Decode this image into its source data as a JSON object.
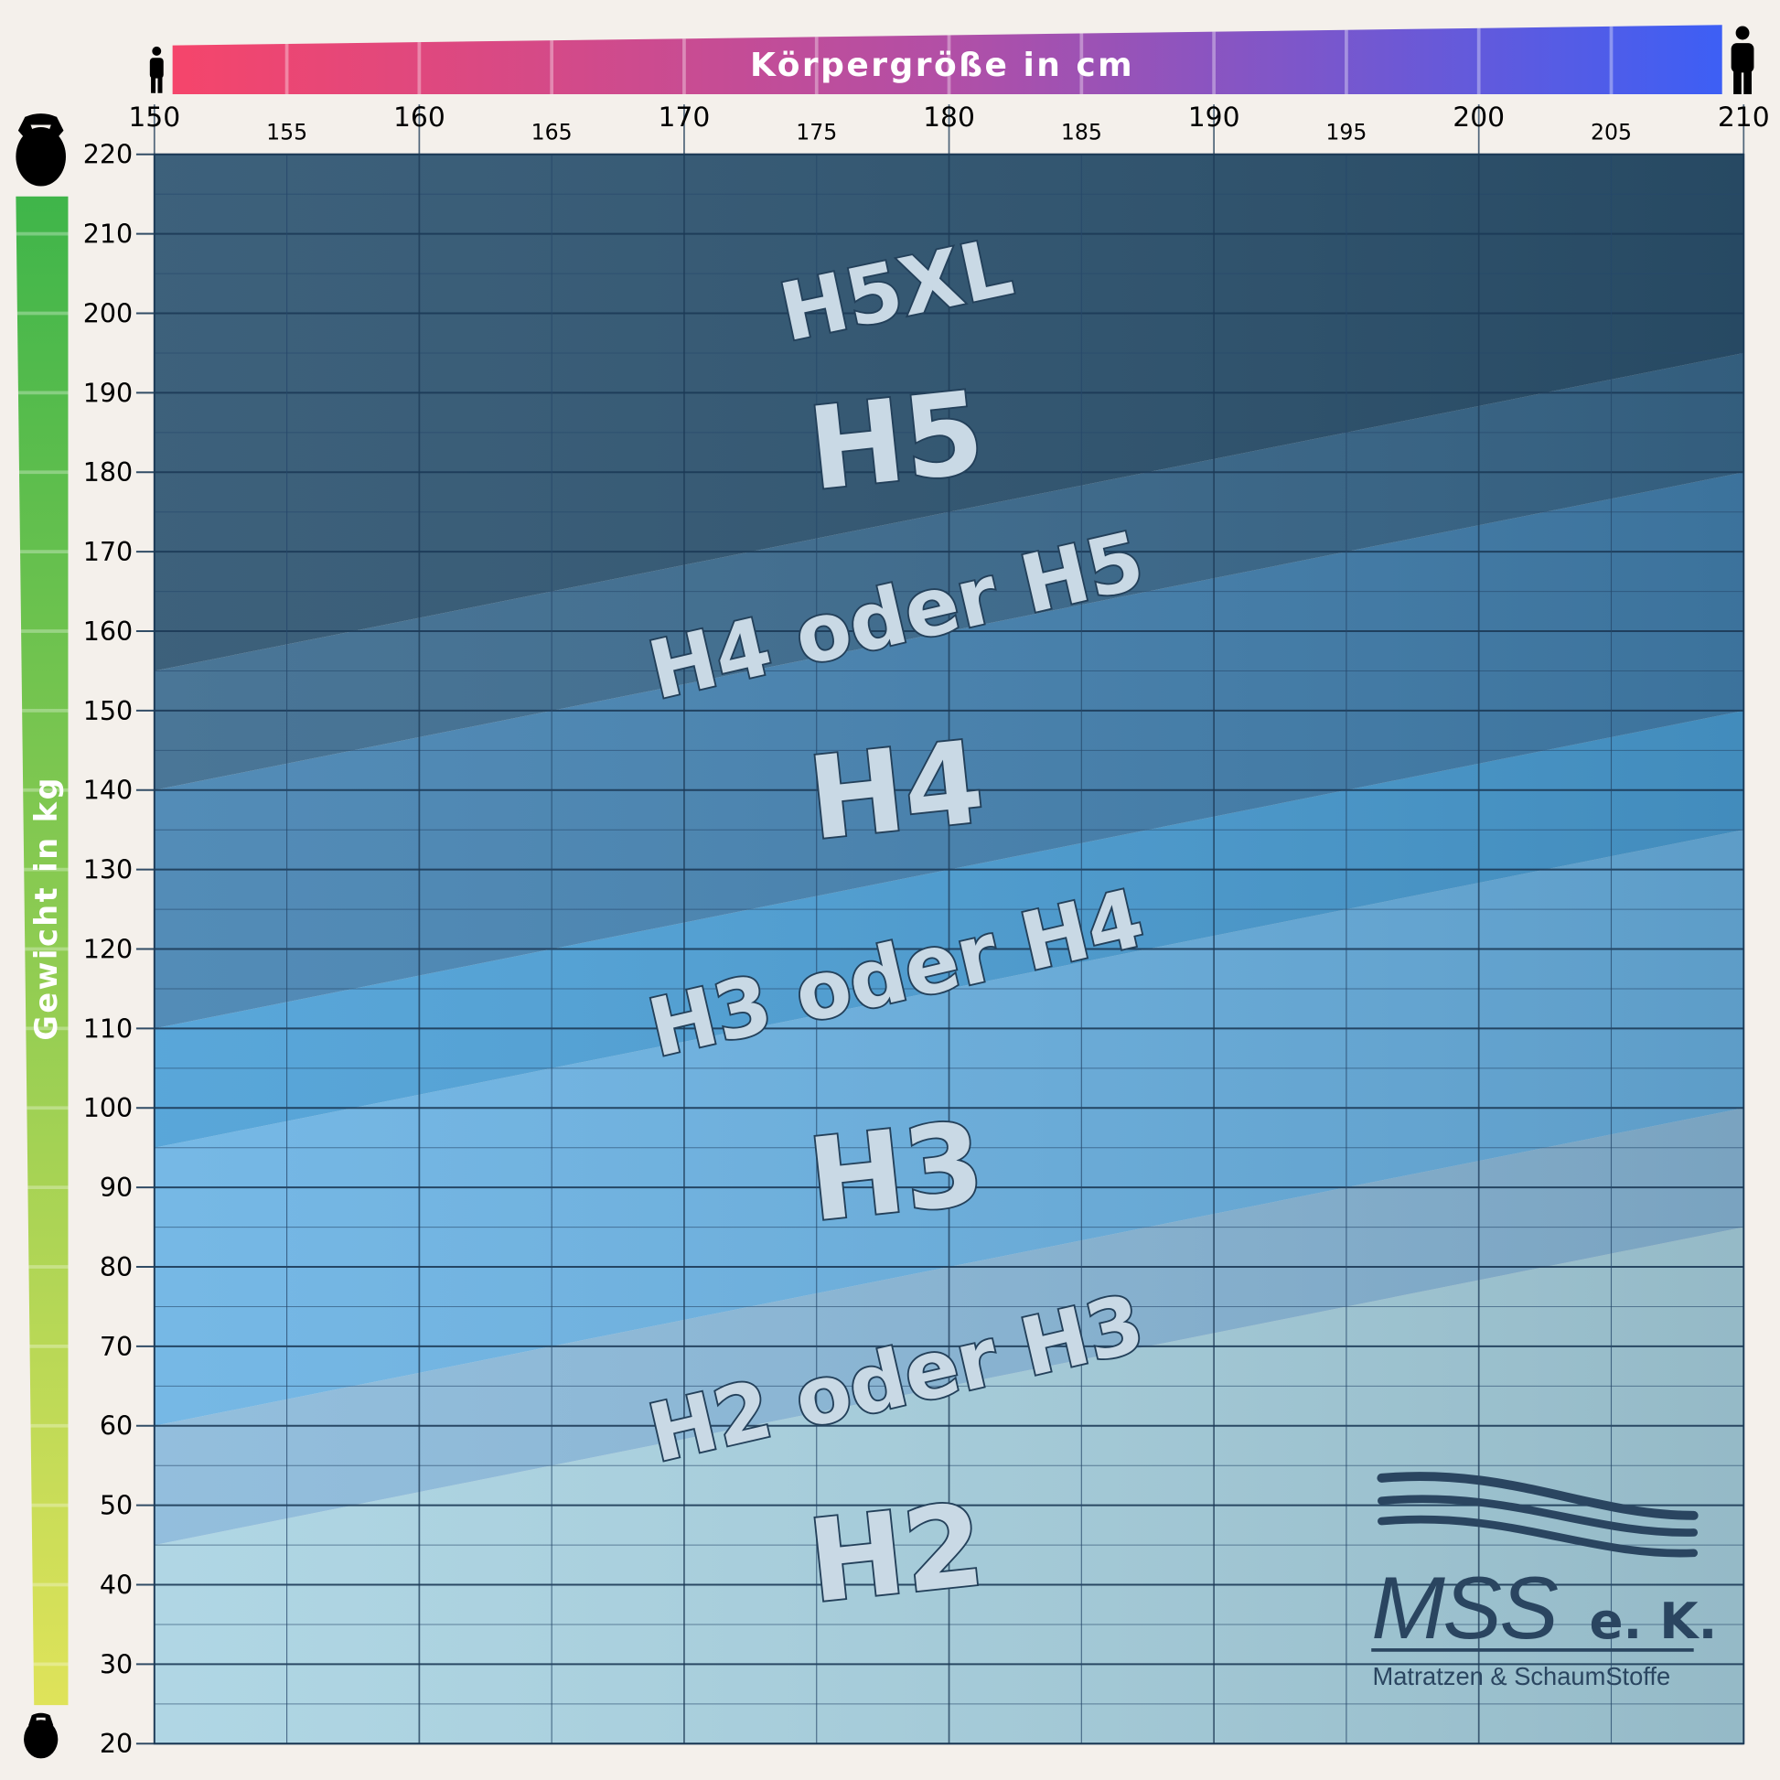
{
  "chart_data": {
    "type": "area",
    "xlabel": "Körpergröße in cm",
    "ylabel": "Gewicht in kg",
    "xlim": [
      150,
      210
    ],
    "ylim": [
      20,
      220
    ],
    "xticks_major": [
      150,
      160,
      170,
      180,
      190,
      200,
      210
    ],
    "xticks_minor": [
      155,
      165,
      175,
      185,
      195,
      205
    ],
    "yticks": [
      220,
      210,
      200,
      190,
      180,
      170,
      160,
      150,
      140,
      130,
      120,
      110,
      100,
      90,
      80,
      70,
      60,
      50,
      40,
      30,
      20
    ],
    "grid": true,
    "zones": [
      {
        "name": "H2",
        "lower": [
          20,
          20
        ],
        "upper": [
          45,
          85
        ],
        "color": "#a9d3e2"
      },
      {
        "name": "H2 oder H3",
        "lower": [
          45,
          85
        ],
        "upper": [
          60,
          100
        ],
        "color": "#8ab9da"
      },
      {
        "name": "H3",
        "lower": [
          60,
          100
        ],
        "upper": [
          95,
          135
        ],
        "color": "#6ab2e3"
      },
      {
        "name": "H3 oder H4",
        "lower": [
          95,
          135
        ],
        "upper": [
          110,
          150
        ],
        "color": "#4b9fd6"
      },
      {
        "name": "H4",
        "lower": [
          110,
          150
        ],
        "upper": [
          140,
          180
        ],
        "color": "#4482b1"
      },
      {
        "name": "H4 oder H5",
        "lower": [
          140,
          180
        ],
        "upper": [
          155,
          195
        ],
        "color": "#3a6a8e"
      },
      {
        "name": "H5",
        "lower": [
          155,
          195
        ],
        "upper": [
          220,
          220
        ],
        "color": "#2c5370"
      }
    ],
    "zone_labels": [
      {
        "text": "H5XL",
        "x": 178,
        "y": 203
      },
      {
        "text": "H5",
        "x": 178,
        "y": 184
      },
      {
        "text": "H4 oder H5",
        "x": 178,
        "y": 162
      },
      {
        "text": "H4",
        "x": 178,
        "y": 140
      },
      {
        "text": "H3 oder H4",
        "x": 178,
        "y": 117
      },
      {
        "text": "H3",
        "x": 178,
        "y": 92
      },
      {
        "text": "H2 oder H3",
        "x": 178,
        "y": 66
      },
      {
        "text": "H2",
        "x": 178,
        "y": 44
      }
    ]
  },
  "logo": {
    "name": "MSS",
    "suffix": "e. K.",
    "tagline": "Matratzen & SchaumStoffe"
  },
  "colors": {
    "height_bar": [
      "#f5456b",
      "#b24fa6",
      "#3d5ff5"
    ],
    "weight_bar": [
      "#3fb54a",
      "#dfe35a"
    ]
  },
  "icons": [
    "person-small-icon",
    "person-large-icon",
    "kettlebell-large-icon",
    "kettlebell-small-icon"
  ]
}
